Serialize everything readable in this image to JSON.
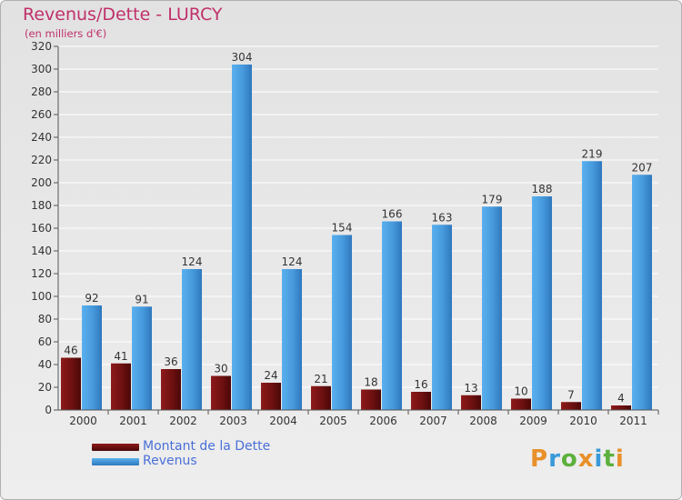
{
  "chart_data": {
    "type": "bar",
    "title": "Revenus/Dette - LURCY",
    "subtitle": "(en milliers d'€)",
    "categories": [
      "2000",
      "2001",
      "2002",
      "2003",
      "2004",
      "2005",
      "2006",
      "2007",
      "2008",
      "2009",
      "2010",
      "2011"
    ],
    "series": [
      {
        "name": "Montant de la Dette",
        "color": "#7a1414",
        "values": [
          46,
          41,
          36,
          30,
          24,
          21,
          18,
          16,
          13,
          10,
          7,
          4
        ]
      },
      {
        "name": "Revenus",
        "color": "#4a9de0",
        "values": [
          92,
          91,
          124,
          304,
          124,
          154,
          166,
          163,
          179,
          188,
          219,
          207
        ]
      }
    ],
    "ylim": [
      0,
      320
    ],
    "yticks": [
      0,
      20,
      40,
      60,
      80,
      100,
      120,
      140,
      160,
      180,
      200,
      220,
      240,
      260,
      280,
      300,
      320
    ],
    "grid": true,
    "legend_position": "bottom-left"
  },
  "logo": {
    "text": "Proxiti",
    "letters": [
      "P",
      "r",
      "o",
      "x",
      "i",
      "t",
      "i"
    ],
    "colors": [
      "#e8902a",
      "#3a9ad9",
      "#5cb03c",
      "#e8902a",
      "#3a9ad9",
      "#5cb03c",
      "#e8902a"
    ]
  }
}
